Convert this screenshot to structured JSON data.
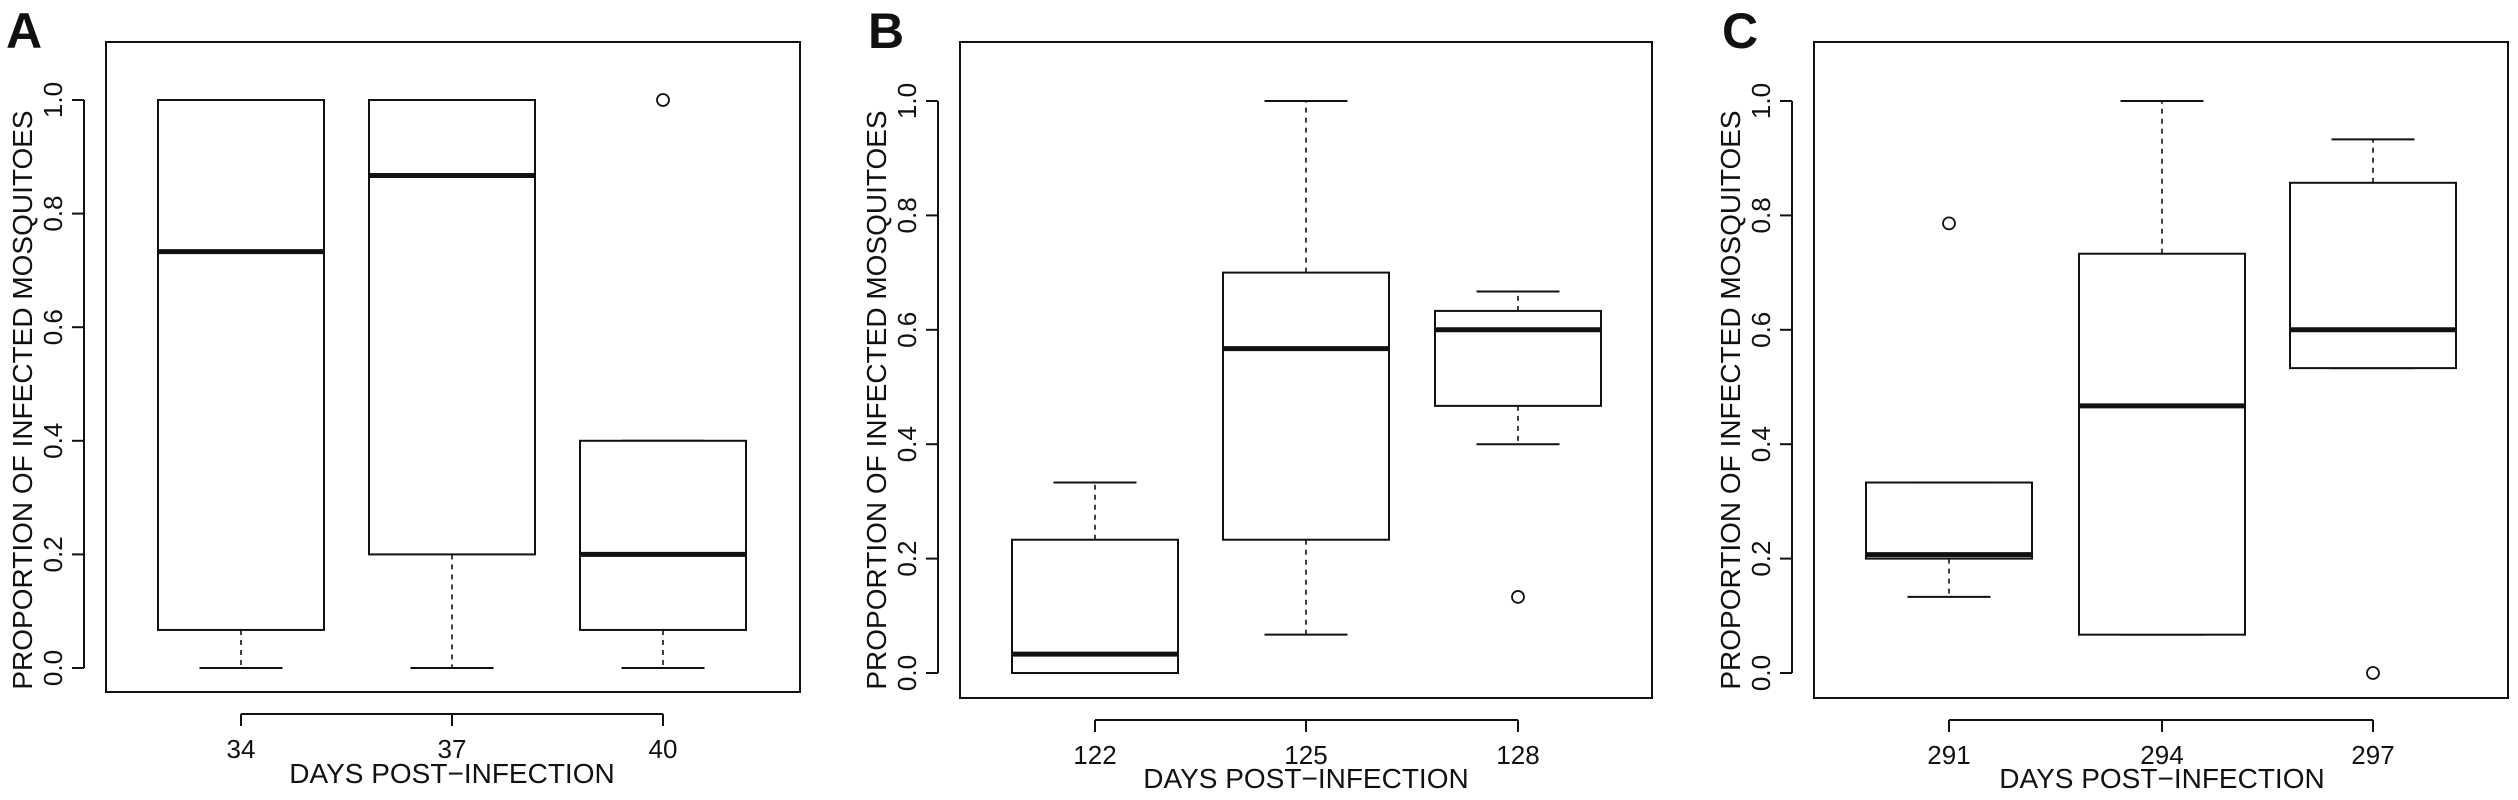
{
  "chart_data": [
    {
      "type": "boxplot",
      "panel_label": "A",
      "xlabel": "DAYS POST−INFECTION",
      "ylabel": "PROPORTION OF INFECTED MOSQUITOES",
      "ylim": [
        0,
        1
      ],
      "yticks": [
        "0.0",
        "0.2",
        "0.4",
        "0.6",
        "0.8",
        "1.0"
      ],
      "categories": [
        "34",
        "37",
        "40"
      ],
      "boxes": [
        {
          "category": "34",
          "whisker_low": 0.0,
          "q1": 0.067,
          "median": 0.733,
          "q3": 1.0,
          "whisker_high": 1.0,
          "outliers": []
        },
        {
          "category": "37",
          "whisker_low": 0.0,
          "q1": 0.2,
          "median": 0.867,
          "q3": 1.0,
          "whisker_high": 1.0,
          "outliers": []
        },
        {
          "category": "40",
          "whisker_low": 0.0,
          "q1": 0.067,
          "median": 0.2,
          "q3": 0.4,
          "whisker_high": 0.4,
          "outliers": [
            1.0
          ]
        }
      ]
    },
    {
      "type": "boxplot",
      "panel_label": "B",
      "xlabel": "DAYS POST−INFECTION",
      "ylabel": "PROPORTION OF INFECTED MOSQUITOES",
      "ylim": [
        0,
        1
      ],
      "yticks": [
        "0.0",
        "0.2",
        "0.4",
        "0.6",
        "0.8",
        "1.0"
      ],
      "categories": [
        "122",
        "125",
        "128"
      ],
      "boxes": [
        {
          "category": "122",
          "whisker_low": 0.0,
          "q1": 0.0,
          "median": 0.033,
          "q3": 0.233,
          "whisker_high": 0.333,
          "outliers": []
        },
        {
          "category": "125",
          "whisker_low": 0.067,
          "q1": 0.233,
          "median": 0.567,
          "q3": 0.7,
          "whisker_high": 1.0,
          "outliers": []
        },
        {
          "category": "128",
          "whisker_low": 0.4,
          "q1": 0.467,
          "median": 0.6,
          "q3": 0.633,
          "whisker_high": 0.667,
          "outliers": [
            0.133
          ]
        }
      ]
    },
    {
      "type": "boxplot",
      "panel_label": "C",
      "xlabel": "DAYS POST−INFECTION",
      "ylabel": "PROPORTION OF INFECTED MOSQUITOES",
      "ylim": [
        0,
        1
      ],
      "yticks": [
        "0.0",
        "0.2",
        "0.4",
        "0.6",
        "0.8",
        "1.0"
      ],
      "categories": [
        "291",
        "294",
        "297"
      ],
      "boxes": [
        {
          "category": "291",
          "whisker_low": 0.133,
          "q1": 0.2,
          "median": 0.207,
          "q3": 0.333,
          "whisker_high": 0.333,
          "outliers": [
            0.786
          ]
        },
        {
          "category": "294",
          "whisker_low": 0.067,
          "q1": 0.067,
          "median": 0.467,
          "q3": 0.733,
          "whisker_high": 1.0,
          "outliers": []
        },
        {
          "category": "297",
          "whisker_low": 0.533,
          "q1": 0.533,
          "median": 0.6,
          "q3": 0.857,
          "whisker_high": 0.933,
          "outliers": [
            0.0
          ]
        }
      ]
    }
  ],
  "colors": {
    "ink": "#111111",
    "background": "#ffffff"
  }
}
